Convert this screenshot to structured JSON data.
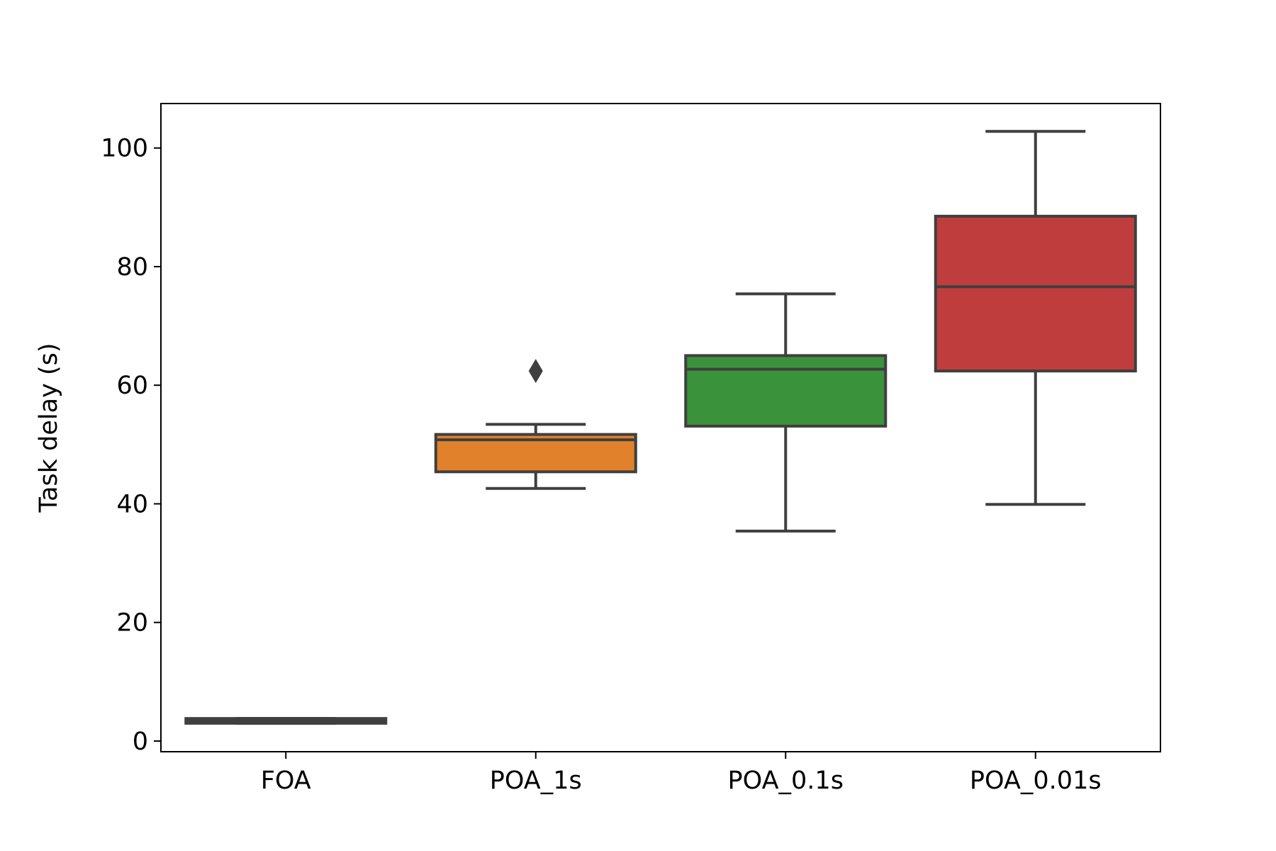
{
  "chart_data": {
    "type": "box",
    "y_label": "Task delay (s)",
    "categories": [
      "FOA",
      "POA_1s",
      "POA_0.1s",
      "POA_0.01s"
    ],
    "colors": [
      "#3274a1",
      "#e1812c",
      "#3a923a",
      "#c03d3e"
    ],
    "boxes": [
      {
        "min": 3.0,
        "q1": 3.0,
        "median": 3.4,
        "q3": 3.8,
        "max": 3.8,
        "outliers": []
      },
      {
        "min": 42.6,
        "q1": 45.4,
        "median": 50.8,
        "q3": 51.7,
        "max": 53.4,
        "outliers": [
          62.4
        ]
      },
      {
        "min": 35.4,
        "q1": 53.1,
        "median": 62.7,
        "q3": 65.0,
        "max": 75.4,
        "outliers": []
      },
      {
        "min": 39.9,
        "q1": 62.4,
        "median": 76.6,
        "q3": 88.5,
        "max": 102.8,
        "outliers": []
      }
    ],
    "ylim": [
      -1.8,
      107.5
    ],
    "yticks": [
      0,
      20,
      40,
      60,
      80,
      100
    ]
  }
}
